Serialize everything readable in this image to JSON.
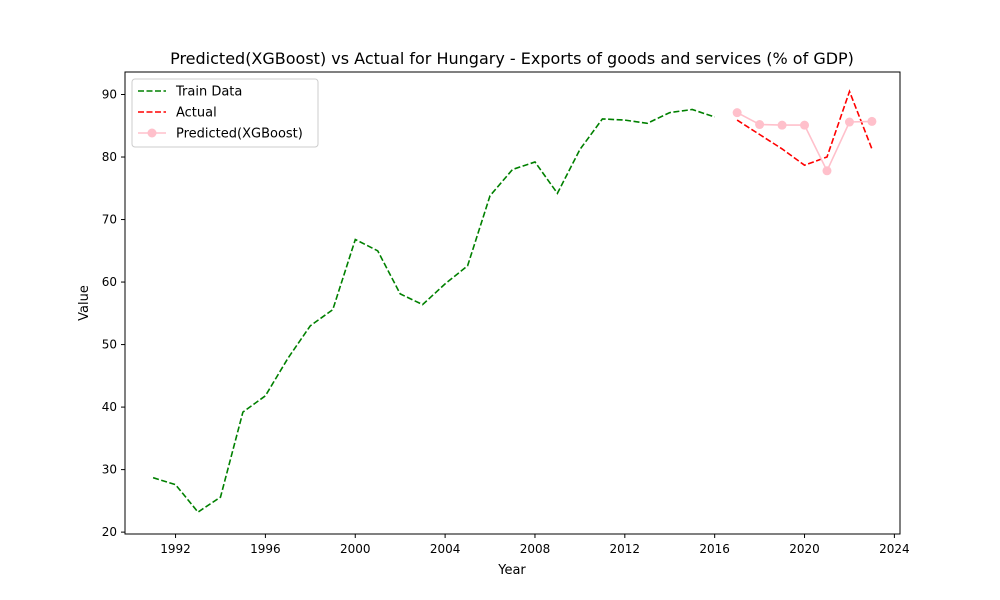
{
  "chart_data": {
    "type": "line",
    "title": "Predicted(XGBoost) vs Actual for Hungary - Exports of goods and services (% of GDP)",
    "xlabel": "Year",
    "ylabel": "Value",
    "xlim": [
      1989.75,
      2024.25
    ],
    "ylim": [
      19.7,
      93.6
    ],
    "xticks": [
      1992,
      1996,
      2000,
      2004,
      2008,
      2012,
      2016,
      2020,
      2024
    ],
    "yticks": [
      20,
      30,
      40,
      50,
      60,
      70,
      80,
      90
    ],
    "legend_position": "upper-left",
    "series": [
      {
        "name": "Train Data",
        "color": "#008000",
        "style": "dashed",
        "x": [
          1991,
          1992,
          1993,
          1994,
          1995,
          1996,
          1997,
          1998,
          1999,
          2000,
          2001,
          2002,
          2003,
          2004,
          2005,
          2006,
          2007,
          2008,
          2009,
          2010,
          2011,
          2012,
          2013,
          2014,
          2015,
          2016
        ],
        "y": [
          28.7,
          27.6,
          23.2,
          25.6,
          39.2,
          41.8,
          47.8,
          53.0,
          55.6,
          66.8,
          65.0,
          58.1,
          56.4,
          59.7,
          62.6,
          73.8,
          78.0,
          79.2,
          74.2,
          81.2,
          86.1,
          85.9,
          85.4,
          87.1,
          87.6,
          86.4
        ]
      },
      {
        "name": "Actual",
        "color": "#ff0000",
        "style": "dashed",
        "x": [
          2017,
          2018,
          2019,
          2020,
          2021,
          2022,
          2023
        ],
        "y": [
          85.9,
          83.6,
          81.3,
          78.7,
          80.0,
          90.5,
          81.3
        ]
      },
      {
        "name": "Predicted(XGBoost)",
        "color": "#ffc0cb",
        "style": "solid-markers",
        "x": [
          2017,
          2018,
          2019,
          2020,
          2021,
          2022,
          2023
        ],
        "y": [
          87.1,
          85.2,
          85.1,
          85.1,
          77.8,
          85.6,
          85.7
        ]
      }
    ]
  }
}
